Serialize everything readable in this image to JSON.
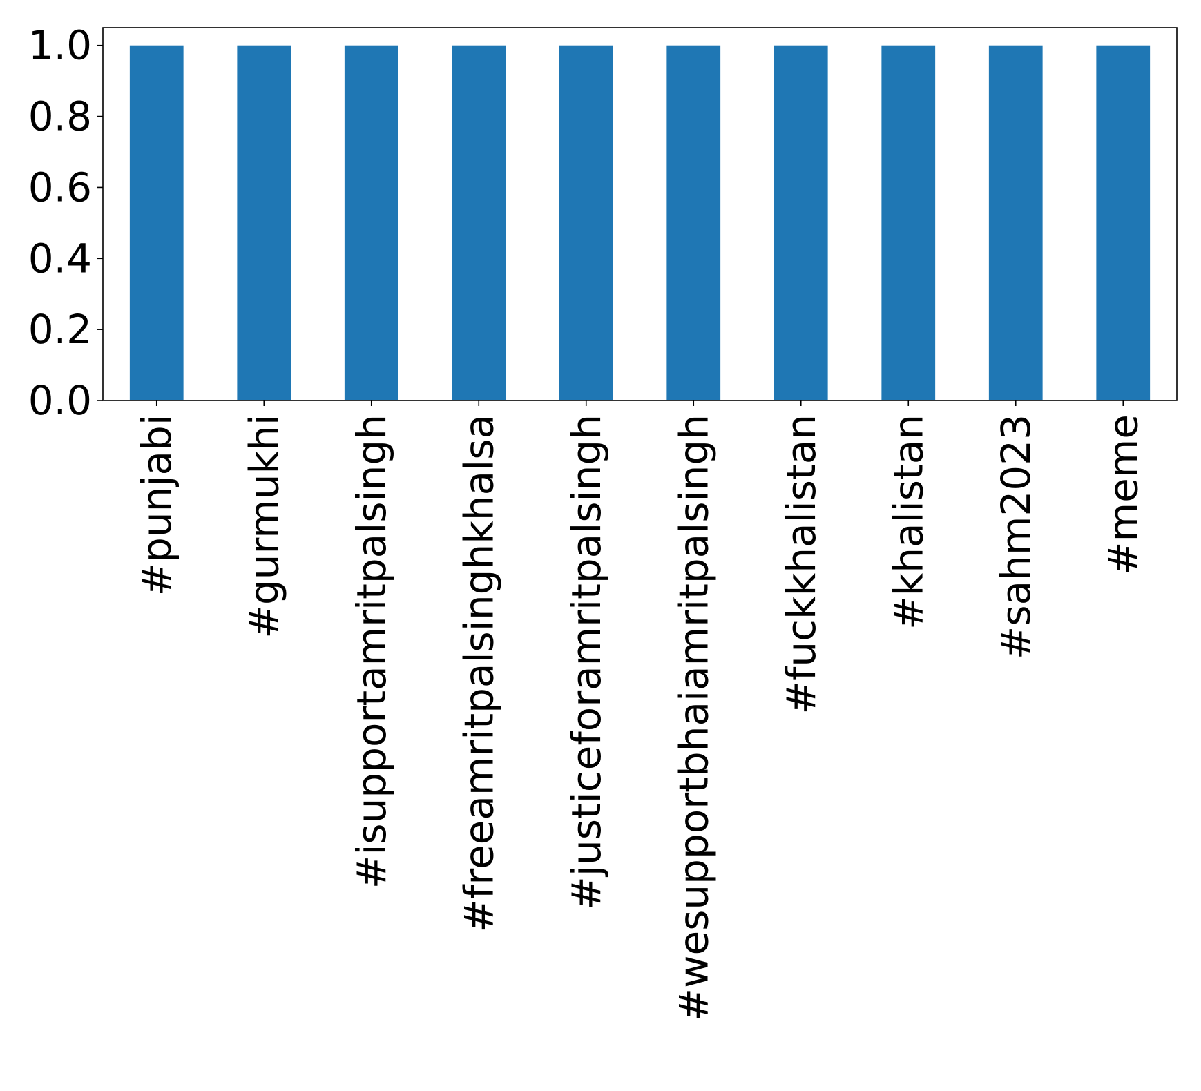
{
  "chart_data": {
    "type": "bar",
    "title": "",
    "xlabel": "",
    "ylabel": "",
    "categories": [
      "#punjabi",
      "#gurmukhi",
      "#isupportamritpalsingh",
      "#freeamritpalsinghkhalsa",
      "#justiceforamritpalsingh",
      "#wesupportbhaiamritpalsingh",
      "#fuckkhalistan",
      "#khalistan",
      "#sahm2023",
      "#meme"
    ],
    "values": [
      1.0,
      1.0,
      1.0,
      1.0,
      1.0,
      1.0,
      1.0,
      1.0,
      1.0,
      1.0
    ],
    "ylim": [
      0.0,
      1.05
    ],
    "yticks": [
      0.0,
      0.2,
      0.4,
      0.6,
      0.8,
      1.0
    ],
    "ytick_labels": [
      "0.0",
      "0.2",
      "0.4",
      "0.6",
      "0.8",
      "1.0"
    ],
    "grid": false,
    "legend": "none",
    "bar_color": "#1f77b4"
  }
}
